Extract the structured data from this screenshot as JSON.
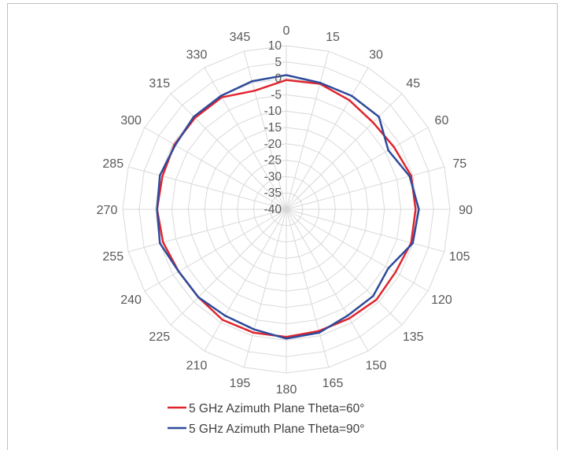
{
  "chart_data": {
    "type": "radar",
    "title": "",
    "categories": [
      "0",
      "15",
      "30",
      "45",
      "60",
      "75",
      "90",
      "105",
      "120",
      "135",
      "150",
      "165",
      "180",
      "195",
      "210",
      "225",
      "240",
      "255",
      "270",
      "285",
      "300",
      "315",
      "330",
      "345"
    ],
    "radial_ticks": [
      "-40",
      "-35",
      "-30",
      "-25",
      "-20",
      "-15",
      "-10",
      "-5",
      "0",
      "5",
      "10"
    ],
    "rlim": [
      -40,
      10
    ],
    "grid": true,
    "legend_position": "bottom",
    "series": [
      {
        "name": "5 GHz Azimuth Plane Theta=60°",
        "color": "#e0252e",
        "values": [
          -0.5,
          -0.3,
          -1.5,
          -2.5,
          -2.0,
          -0.5,
          -0.5,
          -0.5,
          -1.5,
          -1.0,
          -1.5,
          -1.5,
          -1.0,
          -1.0,
          -1.0,
          -2.0,
          -2.0,
          -1.0,
          -0.5,
          -0.8,
          -0.5,
          -0.5,
          -0.5,
          -2.5
        ]
      },
      {
        "name": "5 GHz Azimuth Plane Theta=90°",
        "color": "#2e4b9b",
        "values": [
          1.0,
          0.0,
          0.0,
          0.0,
          -4.0,
          -1.0,
          0.5,
          0.0,
          -4.0,
          -2.5,
          -2.5,
          -1.0,
          -0.5,
          -2.0,
          -2.5,
          -2.0,
          -2.0,
          0.0,
          -0.5,
          0.0,
          -0.8,
          0.0,
          0.0,
          0.5
        ]
      }
    ]
  }
}
